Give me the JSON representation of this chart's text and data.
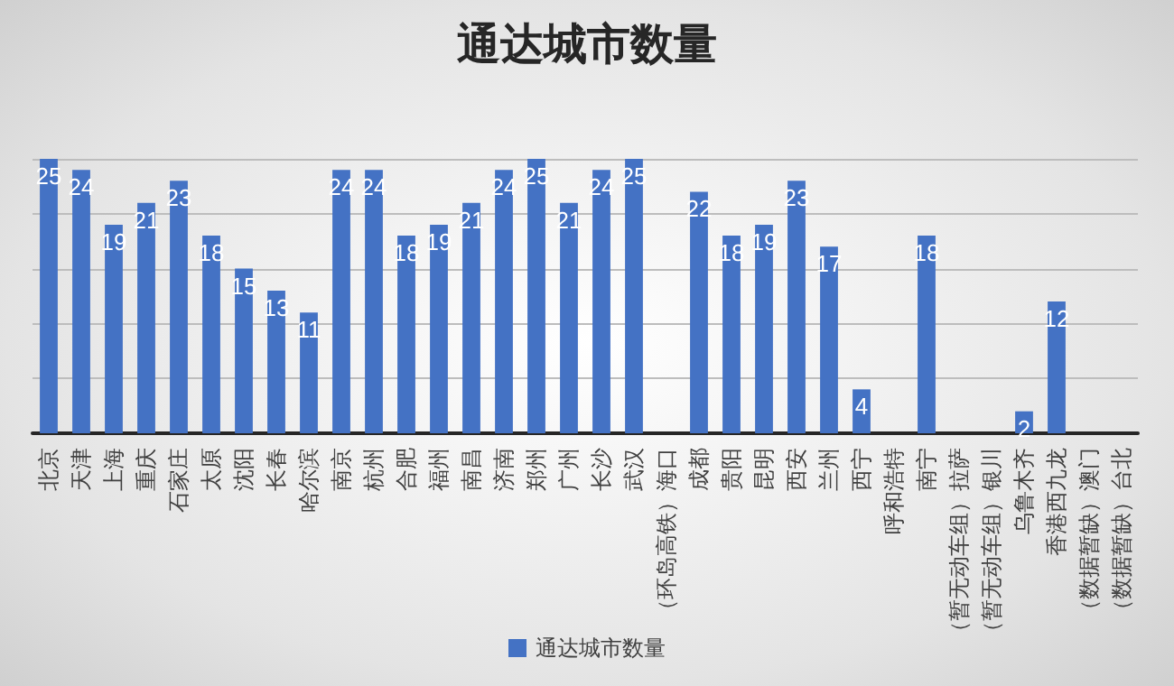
{
  "chart_data": {
    "type": "bar",
    "title": "通达城市数量",
    "categories": [
      "北京",
      "天津",
      "上海",
      "重庆",
      "石家庄",
      "太原",
      "沈阳",
      "长春",
      "哈尔滨",
      "南京",
      "杭州",
      "合肥",
      "福州",
      "南昌",
      "济南",
      "郑州",
      "广州",
      "长沙",
      "武汉",
      "（环岛高铁）海口",
      "成都",
      "贵阳",
      "昆明",
      "西安",
      "兰州",
      "西宁",
      "呼和浩特",
      "南宁",
      "（暂无动车组）拉萨",
      "（暂无动车组）银川",
      "乌鲁木齐",
      "香港西九龙",
      "（数据暂缺）澳门",
      "（数据暂缺）台北"
    ],
    "series": [
      {
        "name": "通达城市数量",
        "color": "#4472c4",
        "values": [
          25,
          24,
          19,
          21,
          23,
          18,
          15,
          13,
          11,
          24,
          24,
          18,
          19,
          21,
          24,
          25,
          21,
          24,
          25,
          null,
          22,
          18,
          19,
          23,
          17,
          4,
          null,
          18,
          null,
          null,
          2,
          12,
          null,
          null
        ]
      }
    ],
    "ylim": [
      0,
      25
    ],
    "yticks": [
      0,
      5,
      10,
      15,
      20,
      25
    ],
    "tick_labels": "x",
    "grid": "y",
    "data_labels": true,
    "legend": "bottom"
  }
}
